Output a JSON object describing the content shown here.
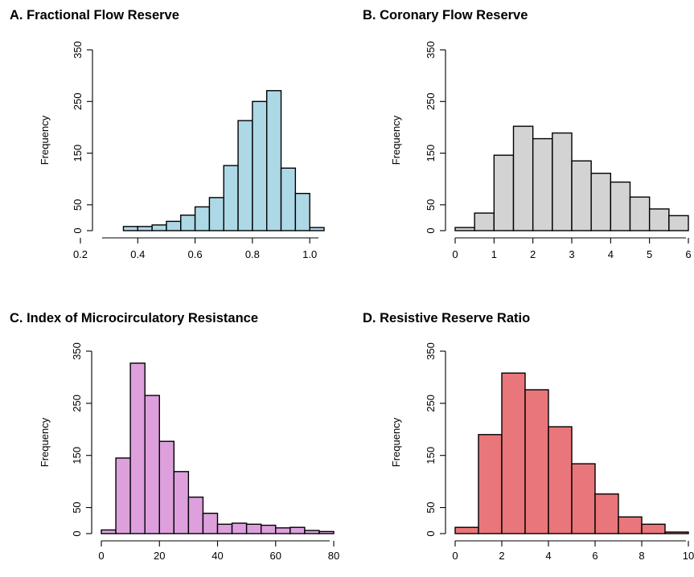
{
  "chart_data": [
    {
      "type": "bar",
      "title": "A. Fractional Flow Reserve",
      "xlabel": "",
      "ylabel": "Frequency",
      "bar_color": "#add8e6",
      "xlim": [
        0.2,
        1.05
      ],
      "ylim": [
        0,
        350
      ],
      "xticks": [
        "0.2",
        "0.4",
        "0.6",
        "0.8",
        "1.0"
      ],
      "yticks": [
        "0",
        "50",
        "150",
        "250",
        "350"
      ],
      "bin_edges": [
        0.35,
        0.4,
        0.45,
        0.5,
        0.55,
        0.6,
        0.65,
        0.7,
        0.75,
        0.8,
        0.85,
        0.9,
        0.95,
        1.0,
        1.05
      ],
      "values": [
        8,
        8,
        11,
        18,
        30,
        46,
        64,
        126,
        213,
        250,
        271,
        121,
        72,
        6
      ]
    },
    {
      "type": "bar",
      "title": "B. Coronary Flow Reserve",
      "xlabel": "",
      "ylabel": "Frequency",
      "bar_color": "#d3d3d3",
      "xlim": [
        0,
        6
      ],
      "ylim": [
        0,
        350
      ],
      "xticks": [
        "0",
        "1",
        "2",
        "3",
        "4",
        "5",
        "6"
      ],
      "yticks": [
        "0",
        "50",
        "150",
        "250",
        "350"
      ],
      "bin_edges": [
        0,
        0.5,
        1,
        1.5,
        2,
        2.5,
        3,
        3.5,
        4,
        4.5,
        5,
        5.5,
        6
      ],
      "values": [
        6,
        34,
        146,
        202,
        178,
        189,
        135,
        111,
        94,
        65,
        42,
        29
      ]
    },
    {
      "type": "bar",
      "title": "C. Index of Microcirculatory Resistance",
      "xlabel": "",
      "ylabel": "Frequency",
      "bar_color": "#dda0dd",
      "xlim": [
        0,
        80
      ],
      "ylim": [
        0,
        350
      ],
      "xticks": [
        "0",
        "20",
        "40",
        "60",
        "80"
      ],
      "yticks": [
        "0",
        "50",
        "150",
        "250",
        "350"
      ],
      "bin_edges": [
        0,
        5,
        10,
        15,
        20,
        25,
        30,
        35,
        40,
        45,
        50,
        55,
        60,
        65,
        70,
        75,
        80
      ],
      "values": [
        7,
        145,
        327,
        265,
        177,
        119,
        70,
        39,
        18,
        20,
        18,
        16,
        11,
        12,
        6,
        4
      ]
    },
    {
      "type": "bar",
      "title": "D. Resistive Reserve Ratio",
      "xlabel": "",
      "ylabel": "Frequency",
      "bar_color": "#e9767a",
      "xlim": [
        0,
        10
      ],
      "ylim": [
        0,
        350
      ],
      "xticks": [
        "0",
        "2",
        "4",
        "6",
        "8",
        "10"
      ],
      "yticks": [
        "0",
        "50",
        "150",
        "250",
        "350"
      ],
      "bin_edges": [
        0,
        1,
        2,
        3,
        4,
        5,
        6,
        7,
        8,
        9,
        10
      ],
      "values": [
        12,
        190,
        308,
        276,
        205,
        134,
        76,
        32,
        18,
        3
      ]
    }
  ]
}
